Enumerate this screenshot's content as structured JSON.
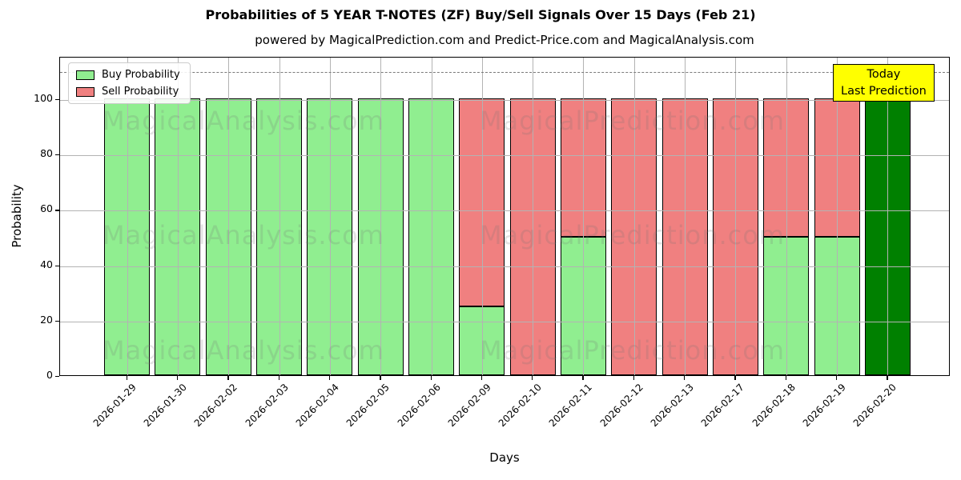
{
  "header": {
    "title": "Probabilities of 5 YEAR T-NOTES (ZF) Buy/Sell Signals Over 15 Days (Feb 21)",
    "subtitle": "powered by MagicalPrediction.com and Predict-Price.com and MagicalAnalysis.com"
  },
  "axes": {
    "xlabel": "Days",
    "ylabel": "Probability"
  },
  "legend": {
    "items": [
      {
        "label": "Buy Probability",
        "color": "#90ee90"
      },
      {
        "label": "Sell Probability",
        "color": "#f08080"
      }
    ]
  },
  "annotation": {
    "lines": [
      "Today",
      "Last Prediction"
    ],
    "bg_color": "#ffff00"
  },
  "watermarks": {
    "left": "MagicalAnalysis.com",
    "right": "MagicalPrediction.com"
  },
  "chart_data": {
    "type": "bar",
    "stacked": true,
    "title": "Probabilities of 5 YEAR T-NOTES (ZF) Buy/Sell Signals Over 15 Days (Feb 21)",
    "xlabel": "Days",
    "ylabel": "Probability",
    "categories": [
      "2026-01-29",
      "2026-01-30",
      "2026-02-02",
      "2026-02-03",
      "2026-02-04",
      "2026-02-05",
      "2026-02-06",
      "2026-02-09",
      "2026-02-10",
      "2026-02-11",
      "2026-02-12",
      "2026-02-13",
      "2026-02-17",
      "2026-02-18",
      "2026-02-19",
      "2026-02-20"
    ],
    "series": [
      {
        "name": "Buy Probability",
        "color": "#90ee90",
        "values": [
          100,
          100,
          100,
          100,
          100,
          100,
          100,
          25,
          0,
          50,
          0,
          0,
          0,
          50,
          50,
          100
        ]
      },
      {
        "name": "Sell Probability",
        "color": "#f08080",
        "values": [
          0,
          0,
          0,
          0,
          0,
          0,
          0,
          75,
          100,
          50,
          100,
          100,
          100,
          50,
          50,
          0
        ]
      }
    ],
    "today_bar": {
      "index": 15,
      "color": "#008000"
    },
    "yticks": [
      0,
      20,
      40,
      60,
      80,
      100
    ],
    "ylim": [
      0,
      115.3
    ],
    "dashed_line_y": 110,
    "grid": true,
    "legend_position": "upper left",
    "bar_edge_color": "#000000"
  }
}
